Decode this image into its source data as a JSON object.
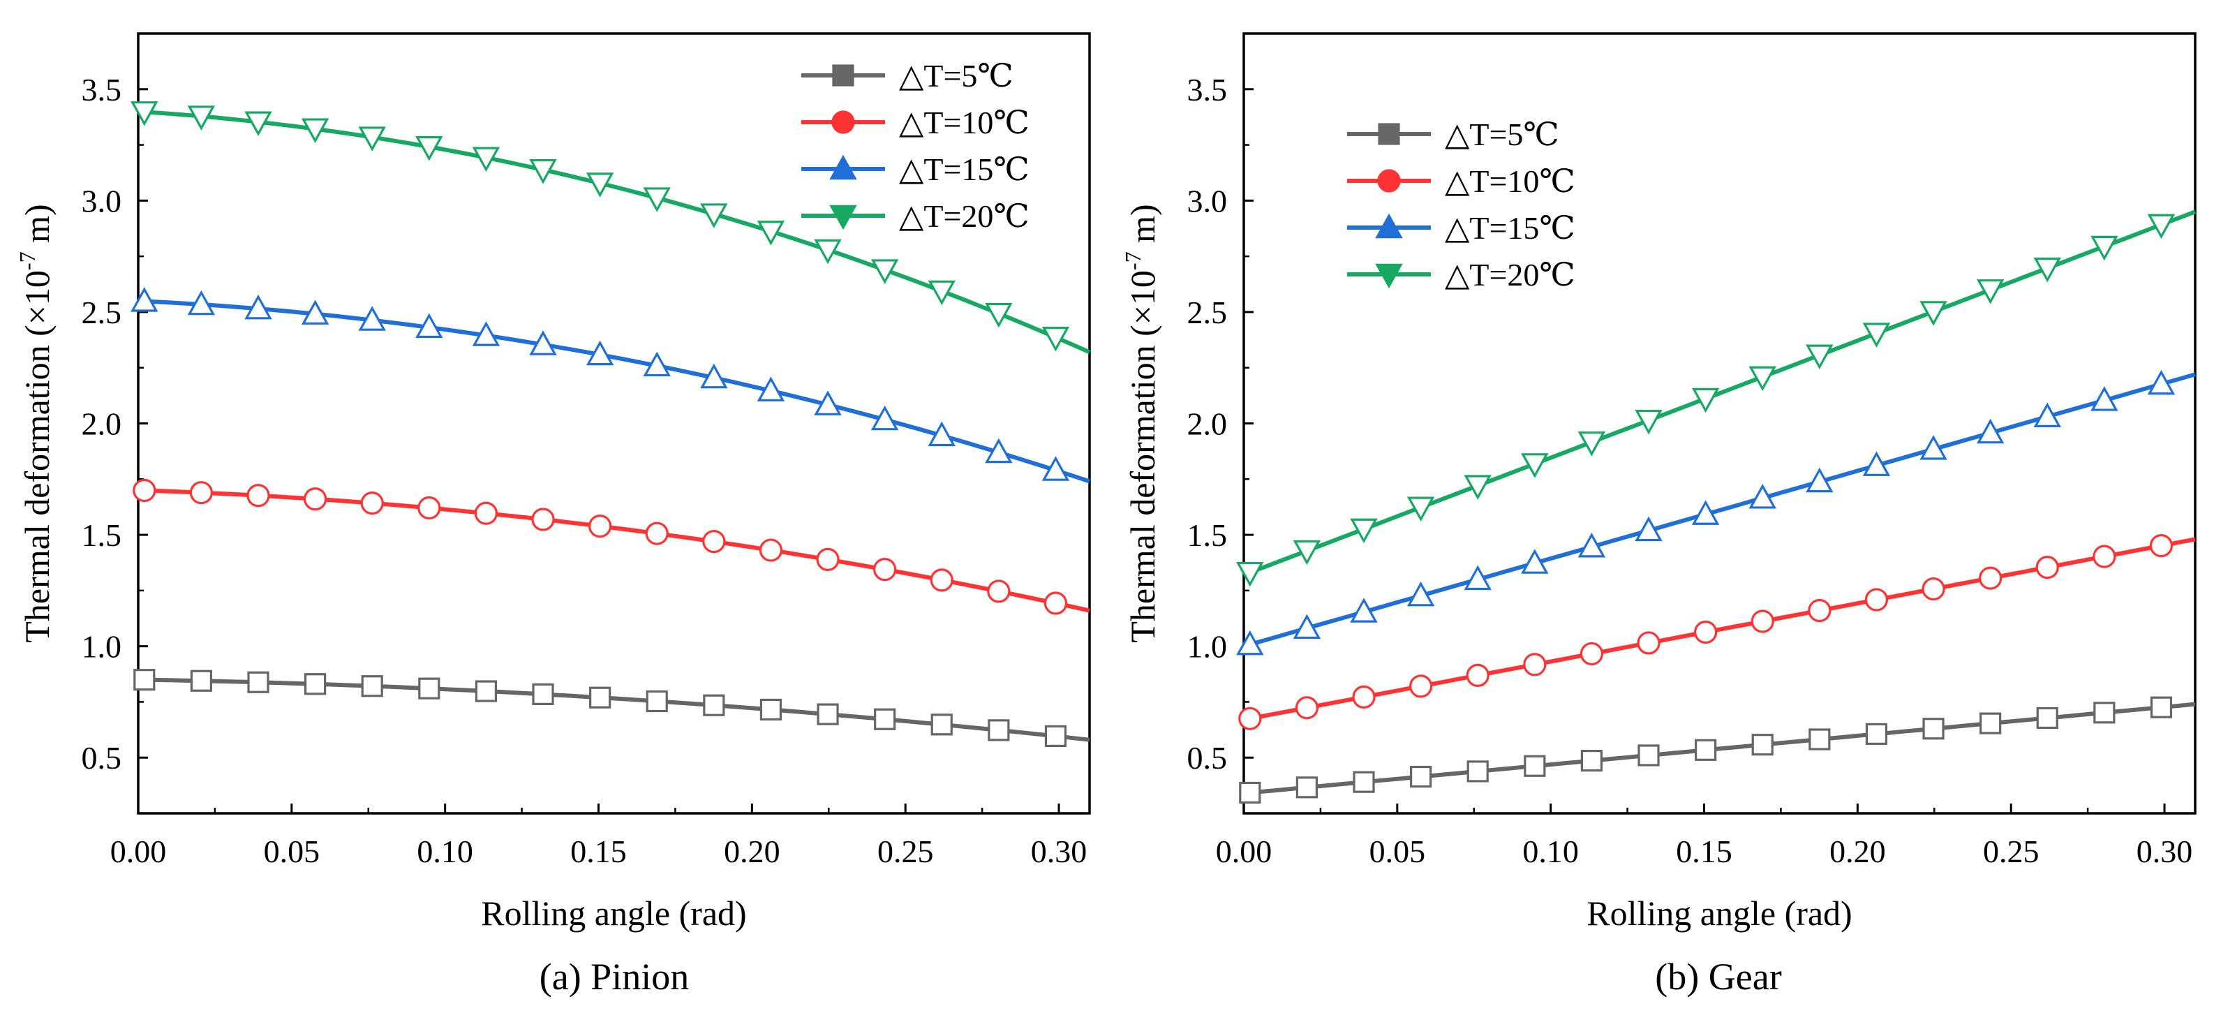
{
  "colors": {
    "t5": "#666666",
    "t10": "#ff3333",
    "t15": "#1f6fd6",
    "t20": "#17a863"
  },
  "chart_data": [
    {
      "type": "line",
      "caption": "(a) Pinion",
      "xlabel": "Rolling angle (rad)",
      "ylabel": "Thermal deformation (×10",
      "ylabel_exp": "-7",
      "ylabel_unit": " m)",
      "xlim": [
        0,
        0.31
      ],
      "ylim": [
        0.25,
        3.75
      ],
      "xticks": [
        0,
        0.05,
        0.1,
        0.15,
        0.2,
        0.25,
        0.3
      ],
      "xtick_labels": [
        "0.00",
        "0.05",
        "0.10",
        "0.15",
        "0.20",
        "0.25",
        "0.30"
      ],
      "yticks": [
        0.5,
        1.0,
        1.5,
        2.0,
        2.5,
        3.0,
        3.5
      ],
      "ytick_labels": [
        "0.5",
        "1.0",
        "1.5",
        "2.0",
        "2.5",
        "3.0",
        "3.5"
      ],
      "legend": {
        "position": "top-right"
      },
      "series": [
        {
          "name": "△T=5℃",
          "marker": "square",
          "color_key": "t5",
          "y0": 0.85,
          "y1": 0.58
        },
        {
          "name": "△T=10℃",
          "marker": "circle",
          "color_key": "t10",
          "y0": 1.7,
          "y1": 1.16
        },
        {
          "name": "△T=15℃",
          "marker": "triangle-up",
          "color_key": "t15",
          "y0": 2.55,
          "y1": 1.74
        },
        {
          "name": "△T=20℃",
          "marker": "triangle-down",
          "color_key": "t20",
          "y0": 3.4,
          "y1": 2.32
        }
      ]
    },
    {
      "type": "line",
      "caption": "(b) Gear",
      "xlabel": "Rolling angle (rad)",
      "ylabel": "Thermal deformation (×10",
      "ylabel_exp": "-7",
      "ylabel_unit": " m)",
      "xlim": [
        0,
        0.31
      ],
      "ylim": [
        0.25,
        3.75
      ],
      "xticks": [
        0,
        0.05,
        0.1,
        0.15,
        0.2,
        0.25,
        0.3
      ],
      "xtick_labels": [
        "0.00",
        "0.05",
        "0.10",
        "0.15",
        "0.20",
        "0.25",
        "0.30"
      ],
      "yticks": [
        0.5,
        1.0,
        1.5,
        2.0,
        2.5,
        3.0,
        3.5
      ],
      "ytick_labels": [
        "0.5",
        "1.0",
        "1.5",
        "2.0",
        "2.5",
        "3.0",
        "3.5"
      ],
      "legend": {
        "position": "top-left"
      },
      "series": [
        {
          "name": "△T=5℃",
          "marker": "square",
          "color_key": "t5",
          "y0": 0.34,
          "y1": 0.74
        },
        {
          "name": "△T=10℃",
          "marker": "circle",
          "color_key": "t10",
          "y0": 0.67,
          "y1": 1.48
        },
        {
          "name": "△T=15℃",
          "marker": "triangle-up",
          "color_key": "t15",
          "y0": 1.0,
          "y1": 2.22
        },
        {
          "name": "△T=20℃",
          "marker": "triangle-down",
          "color_key": "t20",
          "y0": 1.32,
          "y1": 2.95
        }
      ]
    }
  ]
}
